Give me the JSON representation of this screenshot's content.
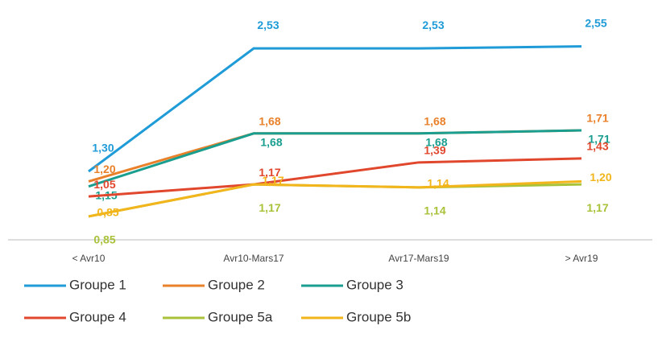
{
  "chart_data": {
    "type": "line",
    "categories": [
      "< Avr10",
      "Avr10-Mars17",
      "Avr17-Mars19",
      "> Avr19"
    ],
    "ylim": [
      0.6,
      2.7
    ],
    "series": [
      {
        "name": "Groupe 1",
        "color": "#1f9bd7",
        "values": [
          1.3,
          2.53,
          2.53,
          2.55
        ],
        "value_labels": [
          "1,30",
          "2,53",
          "2,53",
          "2,55"
        ]
      },
      {
        "name": "Groupe 2",
        "color": "#e9812b",
        "values": [
          1.2,
          1.68,
          1.68,
          1.71
        ],
        "value_labels": [
          "1,20",
          "1,68",
          "1,68",
          "1,71"
        ]
      },
      {
        "name": "Groupe 3",
        "color": "#1a9e8f",
        "values": [
          1.15,
          1.68,
          1.68,
          1.71
        ],
        "value_labels": [
          "1,15",
          "1,68",
          "1,68",
          "1,71"
        ]
      },
      {
        "name": "Groupe 4",
        "color": "#e0472d",
        "values": [
          1.05,
          1.17,
          1.39,
          1.43
        ],
        "value_labels": [
          "1,05",
          "1,17",
          "1,39",
          "1,43"
        ]
      },
      {
        "name": "Groupe 5a",
        "color": "#a8c23a",
        "values": [
          0.85,
          1.17,
          1.14,
          1.17
        ],
        "value_labels": [
          "0,85",
          "1,17",
          "1,14",
          "1,17"
        ]
      },
      {
        "name": "Groupe 5b",
        "color": "#f2b51c",
        "values": [
          0.85,
          1.17,
          1.14,
          1.2
        ],
        "value_labels": [
          "0,85",
          "1,17",
          "1,14",
          "1,20"
        ]
      }
    ]
  }
}
